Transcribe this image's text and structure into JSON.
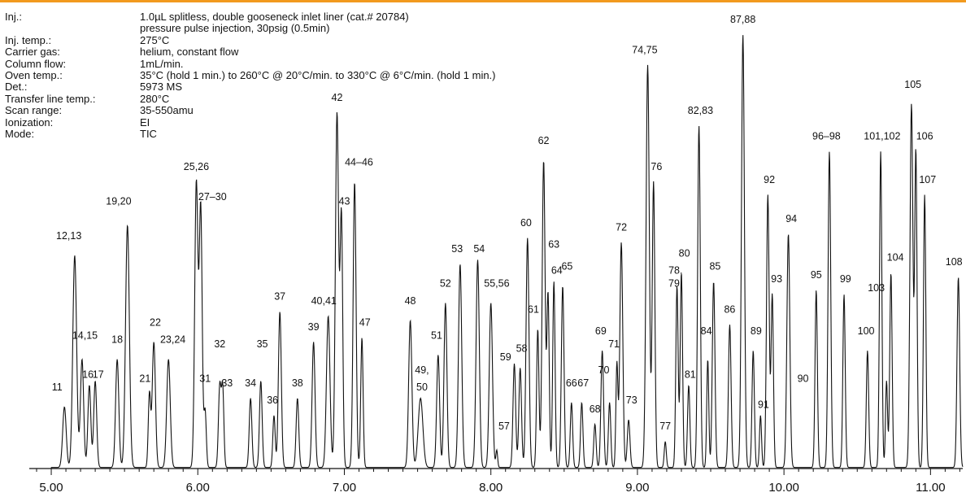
{
  "colors": {
    "accent_bar": "#f29a1e",
    "trace": "#111111",
    "axis": "#111111"
  },
  "conditions": [
    {
      "key": "Inj.:",
      "value": "1.0µL splitless, double gooseneck inlet liner (cat.# 20784)"
    },
    {
      "key": "",
      "value": "pressure pulse injection, 30psig (0.5min)"
    },
    {
      "key": "Inj. temp.:",
      "value": "275°C"
    },
    {
      "key": "Carrier gas:",
      "value": "helium, constant flow"
    },
    {
      "key": "Column flow:",
      "value": "1mL/min."
    },
    {
      "key": "Oven temp.:",
      "value": "35°C (hold 1 min.) to 260°C @  20°C/min. to 330°C @ 6°C/min. (hold 1 min.)"
    },
    {
      "key": "Det.:",
      "value": "5973 MS"
    },
    {
      "key": "Transfer line temp.:",
      "value": "280°C"
    },
    {
      "key": "Scan range:",
      "value": "35-550amu"
    },
    {
      "key": "Ionization:",
      "value": "EI"
    },
    {
      "key": "Mode:",
      "value": "TIC"
    }
  ],
  "chart_data": {
    "type": "line",
    "title": "",
    "xlabel": "",
    "ylabel": "",
    "xlim": [
      4.85,
      11.22
    ],
    "ylim": [
      0,
      100
    ],
    "x_ticks": [
      5.0,
      6.0,
      7.0,
      8.0,
      9.0,
      10.0,
      11.0
    ],
    "x_tick_labels": [
      "5.00",
      "6.00",
      "7.00",
      "8.00",
      "9.00",
      "10.00",
      "11.00"
    ],
    "grid": false,
    "legend": "none",
    "peaks": [
      {
        "t": 5.09,
        "h": 14,
        "w": 0.012
      },
      {
        "t": 5.16,
        "h": 49,
        "w": 0.013
      },
      {
        "t": 5.21,
        "h": 25,
        "w": 0.011
      },
      {
        "t": 5.26,
        "h": 19,
        "w": 0.01
      },
      {
        "t": 5.3,
        "h": 20,
        "w": 0.01
      },
      {
        "t": 5.45,
        "h": 25,
        "w": 0.011
      },
      {
        "t": 5.52,
        "h": 56,
        "w": 0.013
      },
      {
        "t": 5.67,
        "h": 17,
        "w": 0.008
      },
      {
        "t": 5.7,
        "h": 29,
        "w": 0.011
      },
      {
        "t": 5.8,
        "h": 25,
        "w": 0.012
      },
      {
        "t": 5.99,
        "h": 66,
        "w": 0.011
      },
      {
        "t": 6.02,
        "h": 60,
        "w": 0.01
      },
      {
        "t": 6.05,
        "h": 13,
        "w": 0.008
      },
      {
        "t": 6.15,
        "h": 19,
        "w": 0.009
      },
      {
        "t": 6.17,
        "h": 18,
        "w": 0.008
      },
      {
        "t": 6.36,
        "h": 16,
        "w": 0.009
      },
      {
        "t": 6.43,
        "h": 20,
        "w": 0.009
      },
      {
        "t": 6.52,
        "h": 12,
        "w": 0.008
      },
      {
        "t": 6.56,
        "h": 36,
        "w": 0.01
      },
      {
        "t": 6.68,
        "h": 16,
        "w": 0.009
      },
      {
        "t": 6.79,
        "h": 29,
        "w": 0.01
      },
      {
        "t": 6.89,
        "h": 35,
        "w": 0.012
      },
      {
        "t": 6.95,
        "h": 82,
        "w": 0.011
      },
      {
        "t": 6.98,
        "h": 58,
        "w": 0.009
      },
      {
        "t": 7.07,
        "h": 66,
        "w": 0.01
      },
      {
        "t": 7.12,
        "h": 30,
        "w": 0.008
      },
      {
        "t": 7.45,
        "h": 34,
        "w": 0.011
      },
      {
        "t": 7.52,
        "h": 16,
        "w": 0.016
      },
      {
        "t": 7.64,
        "h": 26,
        "w": 0.01
      },
      {
        "t": 7.69,
        "h": 38,
        "w": 0.01
      },
      {
        "t": 7.79,
        "h": 47,
        "w": 0.011
      },
      {
        "t": 7.91,
        "h": 48,
        "w": 0.011
      },
      {
        "t": 8.0,
        "h": 38,
        "w": 0.011
      },
      {
        "t": 8.04,
        "h": 4,
        "w": 0.006
      },
      {
        "t": 8.16,
        "h": 24,
        "w": 0.009
      },
      {
        "t": 8.2,
        "h": 23,
        "w": 0.009
      },
      {
        "t": 8.25,
        "h": 53,
        "w": 0.01
      },
      {
        "t": 8.32,
        "h": 32,
        "w": 0.008
      },
      {
        "t": 8.36,
        "h": 71,
        "w": 0.01
      },
      {
        "t": 8.39,
        "h": 40,
        "w": 0.008
      },
      {
        "t": 8.43,
        "h": 43,
        "w": 0.008
      },
      {
        "t": 8.49,
        "h": 42,
        "w": 0.009
      },
      {
        "t": 8.55,
        "h": 15,
        "w": 0.008
      },
      {
        "t": 8.62,
        "h": 15,
        "w": 0.008
      },
      {
        "t": 8.71,
        "h": 10,
        "w": 0.008
      },
      {
        "t": 8.76,
        "h": 27,
        "w": 0.009
      },
      {
        "t": 8.81,
        "h": 15,
        "w": 0.008
      },
      {
        "t": 8.86,
        "h": 24,
        "w": 0.007
      },
      {
        "t": 8.89,
        "h": 52,
        "w": 0.01
      },
      {
        "t": 8.94,
        "h": 11,
        "w": 0.009
      },
      {
        "t": 9.07,
        "h": 93,
        "w": 0.011
      },
      {
        "t": 9.11,
        "h": 66,
        "w": 0.009
      },
      {
        "t": 9.19,
        "h": 6,
        "w": 0.007
      },
      {
        "t": 9.27,
        "h": 42,
        "w": 0.008
      },
      {
        "t": 9.3,
        "h": 45,
        "w": 0.008
      },
      {
        "t": 9.35,
        "h": 19,
        "w": 0.008
      },
      {
        "t": 9.42,
        "h": 79,
        "w": 0.009
      },
      {
        "t": 9.48,
        "h": 25,
        "w": 0.007
      },
      {
        "t": 9.52,
        "h": 43,
        "w": 0.009
      },
      {
        "t": 9.63,
        "h": 33,
        "w": 0.009
      },
      {
        "t": 9.72,
        "h": 100,
        "w": 0.01
      },
      {
        "t": 9.79,
        "h": 27,
        "w": 0.008
      },
      {
        "t": 9.84,
        "h": 12,
        "w": 0.007
      },
      {
        "t": 9.89,
        "h": 63,
        "w": 0.009
      },
      {
        "t": 9.92,
        "h": 40,
        "w": 0.008
      },
      {
        "t": 10.03,
        "h": 54,
        "w": 0.01
      },
      {
        "t": 10.22,
        "h": 41,
        "w": 0.008
      },
      {
        "t": 10.31,
        "h": 73,
        "w": 0.009
      },
      {
        "t": 10.41,
        "h": 40,
        "w": 0.008
      },
      {
        "t": 10.57,
        "h": 27,
        "w": 0.008
      },
      {
        "t": 10.66,
        "h": 73,
        "w": 0.008
      },
      {
        "t": 10.7,
        "h": 20,
        "w": 0.007
      },
      {
        "t": 10.73,
        "h": 45,
        "w": 0.008
      },
      {
        "t": 10.87,
        "h": 84,
        "w": 0.01
      },
      {
        "t": 10.9,
        "h": 73,
        "w": 0.008
      },
      {
        "t": 10.96,
        "h": 63,
        "w": 0.008
      },
      {
        "t": 11.19,
        "h": 44,
        "w": 0.009
      }
    ],
    "annotations": [
      {
        "label": "11",
        "x": 5.04,
        "y": 18
      },
      {
        "label": "12,13",
        "x": 5.12,
        "y": 53
      },
      {
        "label": "14,15",
        "x": 5.23,
        "y": 30
      },
      {
        "label": "16",
        "x": 5.25,
        "y": 21
      },
      {
        "label": "17",
        "x": 5.32,
        "y": 21
      },
      {
        "label": "18",
        "x": 5.45,
        "y": 29
      },
      {
        "label": "19,20",
        "x": 5.46,
        "y": 61
      },
      {
        "label": "21",
        "x": 5.64,
        "y": 20
      },
      {
        "label": "22",
        "x": 5.71,
        "y": 33
      },
      {
        "label": "23,24",
        "x": 5.83,
        "y": 29
      },
      {
        "label": "25,26",
        "x": 5.99,
        "y": 69
      },
      {
        "label": "27–30",
        "x": 6.1,
        "y": 62
      },
      {
        "label": "31",
        "x": 6.05,
        "y": 20
      },
      {
        "label": "32",
        "x": 6.15,
        "y": 28
      },
      {
        "label": "33",
        "x": 6.2,
        "y": 19
      },
      {
        "label": "34",
        "x": 6.36,
        "y": 19
      },
      {
        "label": "35",
        "x": 6.44,
        "y": 28
      },
      {
        "label": "36",
        "x": 6.51,
        "y": 15
      },
      {
        "label": "37",
        "x": 6.56,
        "y": 39
      },
      {
        "label": "38",
        "x": 6.68,
        "y": 19
      },
      {
        "label": "39",
        "x": 6.79,
        "y": 32
      },
      {
        "label": "40,41",
        "x": 6.86,
        "y": 38
      },
      {
        "label": "42",
        "x": 6.95,
        "y": 85
      },
      {
        "label": "43",
        "x": 7.0,
        "y": 61
      },
      {
        "label": "44–46",
        "x": 7.1,
        "y": 70
      },
      {
        "label": "47",
        "x": 7.14,
        "y": 33
      },
      {
        "label": "48",
        "x": 7.45,
        "y": 38
      },
      {
        "label": "49,",
        "x": 7.53,
        "y": 22
      },
      {
        "label": "50",
        "x": 7.53,
        "y": 18
      },
      {
        "label": "51",
        "x": 7.63,
        "y": 30
      },
      {
        "label": "52",
        "x": 7.69,
        "y": 42
      },
      {
        "label": "53",
        "x": 7.77,
        "y": 50
      },
      {
        "label": "54",
        "x": 7.92,
        "y": 50
      },
      {
        "label": "55,56",
        "x": 8.04,
        "y": 42
      },
      {
        "label": "57",
        "x": 8.09,
        "y": 9
      },
      {
        "label": "58",
        "x": 8.21,
        "y": 27
      },
      {
        "label": "59",
        "x": 8.1,
        "y": 25
      },
      {
        "label": "60",
        "x": 8.24,
        "y": 56
      },
      {
        "label": "61",
        "x": 8.29,
        "y": 36
      },
      {
        "label": "62",
        "x": 8.36,
        "y": 75
      },
      {
        "label": "63",
        "x": 8.43,
        "y": 51
      },
      {
        "label": "64",
        "x": 8.45,
        "y": 45
      },
      {
        "label": "65",
        "x": 8.52,
        "y": 46
      },
      {
        "label": "66",
        "x": 8.55,
        "y": 19
      },
      {
        "label": "67",
        "x": 8.63,
        "y": 19
      },
      {
        "label": "68",
        "x": 8.71,
        "y": 13
      },
      {
        "label": "69",
        "x": 8.75,
        "y": 31
      },
      {
        "label": "70",
        "x": 8.77,
        "y": 22
      },
      {
        "label": "71",
        "x": 8.84,
        "y": 28
      },
      {
        "label": "72",
        "x": 8.89,
        "y": 55
      },
      {
        "label": "73",
        "x": 8.96,
        "y": 15
      },
      {
        "label": "74,75",
        "x": 9.05,
        "y": 96
      },
      {
        "label": "76",
        "x": 9.13,
        "y": 69
      },
      {
        "label": "77",
        "x": 9.19,
        "y": 9
      },
      {
        "label": "78,",
        "x": 9.26,
        "y": 45
      },
      {
        "label": "79",
        "x": 9.25,
        "y": 42
      },
      {
        "label": "80",
        "x": 9.32,
        "y": 49
      },
      {
        "label": "81",
        "x": 9.36,
        "y": 21
      },
      {
        "label": "82,83",
        "x": 9.43,
        "y": 82
      },
      {
        "label": "84",
        "x": 9.47,
        "y": 31
      },
      {
        "label": "85",
        "x": 9.53,
        "y": 46
      },
      {
        "label": "86",
        "x": 9.63,
        "y": 36
      },
      {
        "label": "87,88",
        "x": 9.72,
        "y": 103
      },
      {
        "label": "89",
        "x": 9.81,
        "y": 31
      },
      {
        "label": "90",
        "x": 10.13,
        "y": 20
      },
      {
        "label": "91",
        "x": 9.86,
        "y": 14
      },
      {
        "label": "92",
        "x": 9.9,
        "y": 66
      },
      {
        "label": "93",
        "x": 9.95,
        "y": 43
      },
      {
        "label": "94",
        "x": 10.05,
        "y": 57
      },
      {
        "label": "95",
        "x": 10.22,
        "y": 44
      },
      {
        "label": "96–98",
        "x": 10.29,
        "y": 76
      },
      {
        "label": "99",
        "x": 10.42,
        "y": 43
      },
      {
        "label": "100",
        "x": 10.56,
        "y": 31
      },
      {
        "label": "101,102",
        "x": 10.67,
        "y": 76
      },
      {
        "label": "103",
        "x": 10.63,
        "y": 41
      },
      {
        "label": "104",
        "x": 10.76,
        "y": 48
      },
      {
        "label": "105",
        "x": 10.88,
        "y": 88
      },
      {
        "label": "106",
        "x": 10.96,
        "y": 76
      },
      {
        "label": "107",
        "x": 10.98,
        "y": 66
      },
      {
        "label": "108",
        "x": 11.16,
        "y": 47
      }
    ]
  }
}
